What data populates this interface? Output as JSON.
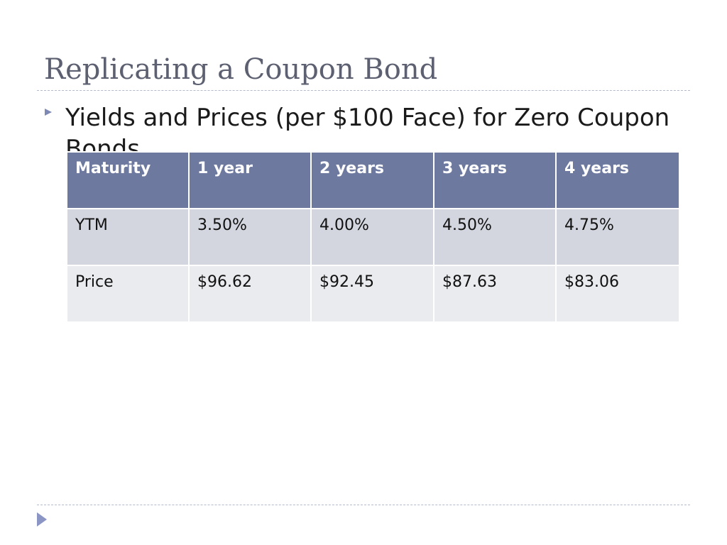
{
  "slide": {
    "title": "Replicating a Coupon Bond",
    "bullet": "Yields and Prices (per $100 Face) for Zero Coupon Bonds"
  },
  "table": {
    "headers": [
      "Maturity",
      "1 year",
      "2 years",
      "3 years",
      "4 years"
    ],
    "rows": [
      [
        "YTM",
        "3.50%",
        "4.00%",
        "4.50%",
        "4.75%"
      ],
      [
        "Price",
        "$96.62",
        "$92.45",
        "$87.63",
        "$83.06"
      ]
    ]
  },
  "colors": {
    "title": "#5d6071",
    "header_fill": "#6e79a0",
    "row_dark": "#d3d6df",
    "row_light": "#eaebef",
    "accent": "#8b96c4"
  },
  "icons": {
    "bullet": "triangle-bullet-icon",
    "nav": "next-slide-arrow-icon"
  }
}
